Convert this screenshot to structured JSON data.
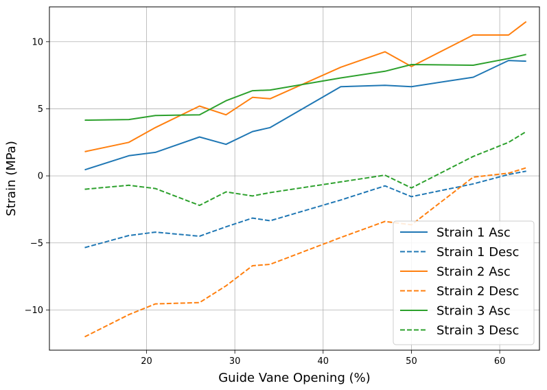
{
  "chart_data": {
    "type": "line",
    "title": "",
    "xlabel": "Guide Vane Opening (%)",
    "ylabel": "Strain (MPa)",
    "xlim": [
      9,
      64.5
    ],
    "ylim": [
      -13,
      12.6
    ],
    "xticks": [
      20,
      30,
      40,
      50,
      60
    ],
    "yticks": [
      -10,
      -5,
      0,
      5,
      10
    ],
    "xtick_labels": [
      "20",
      "30",
      "40",
      "50",
      "60"
    ],
    "ytick_labels": [
      "−10",
      "−5",
      "0",
      "5",
      "10"
    ],
    "grid": true,
    "legend_position": "lower-right",
    "series": [
      {
        "name": "Strain 1 Asc",
        "color": "#1f77b4",
        "style": "solid",
        "x": [
          13,
          18,
          21,
          26,
          29,
          32,
          34,
          42,
          47,
          50,
          57,
          61,
          63
        ],
        "y": [
          0.45,
          1.5,
          1.75,
          2.9,
          2.35,
          3.3,
          3.6,
          6.65,
          6.75,
          6.65,
          7.35,
          8.6,
          8.55
        ]
      },
      {
        "name": "Strain 1 Desc",
        "color": "#1f77b4",
        "style": "dashed",
        "x": [
          13,
          18,
          21,
          26,
          29,
          32,
          34,
          42,
          47,
          50,
          57,
          61,
          63
        ],
        "y": [
          -5.35,
          -4.45,
          -4.2,
          -4.5,
          -3.8,
          -3.15,
          -3.35,
          -1.8,
          -0.75,
          -1.55,
          -0.6,
          0.1,
          0.35
        ]
      },
      {
        "name": "Strain 2 Asc",
        "color": "#ff7f0e",
        "style": "solid",
        "x": [
          13,
          18,
          21,
          26,
          29,
          32,
          34,
          42,
          47,
          50,
          57,
          61,
          63
        ],
        "y": [
          1.8,
          2.5,
          3.6,
          5.2,
          4.55,
          5.85,
          5.75,
          8.1,
          9.25,
          8.15,
          10.5,
          10.5,
          11.5
        ]
      },
      {
        "name": "Strain 2 Desc",
        "color": "#ff7f0e",
        "style": "dashed",
        "x": [
          13,
          18,
          21,
          26,
          29,
          32,
          34,
          42,
          47,
          50,
          57,
          61,
          63
        ],
        "y": [
          -12.0,
          -10.35,
          -9.55,
          -9.45,
          -8.2,
          -6.7,
          -6.6,
          -4.6,
          -3.4,
          -3.65,
          -0.1,
          0.2,
          0.6
        ]
      },
      {
        "name": "Strain 3 Asc",
        "color": "#2ca02c",
        "style": "solid",
        "x": [
          13,
          18,
          21,
          26,
          29,
          32,
          34,
          42,
          47,
          50,
          57,
          61,
          63
        ],
        "y": [
          4.15,
          4.2,
          4.5,
          4.55,
          5.6,
          6.35,
          6.4,
          7.3,
          7.8,
          8.3,
          8.25,
          8.75,
          9.05
        ]
      },
      {
        "name": "Strain 3 Desc",
        "color": "#2ca02c",
        "style": "dashed",
        "x": [
          13,
          18,
          21,
          26,
          29,
          32,
          34,
          42,
          47,
          50,
          57,
          61,
          63
        ],
        "y": [
          -1.0,
          -0.7,
          -0.95,
          -2.2,
          -1.2,
          -1.5,
          -1.25,
          -0.45,
          0.05,
          -0.9,
          1.45,
          2.5,
          3.3
        ]
      }
    ]
  }
}
